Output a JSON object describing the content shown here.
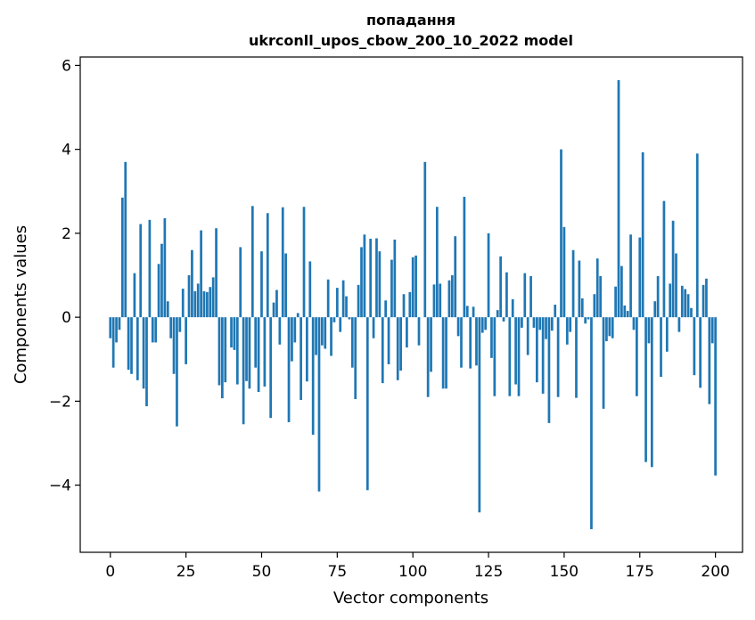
{
  "chart_data": {
    "type": "bar",
    "title": [
      "попадання",
      "ukrconll_upos_cbow_200_10_2022 model"
    ],
    "xlabel": "Vector components",
    "ylabel": "Components values",
    "xlim": [
      -9.95,
      208.95
    ],
    "ylim": [
      -5.6,
      6.2
    ],
    "xticks": [
      0,
      25,
      50,
      75,
      100,
      125,
      150,
      175,
      200
    ],
    "yticks": [
      -4,
      -2,
      0,
      2,
      4,
      6
    ],
    "grid": false,
    "legend": "none",
    "bar_color": "#1f77b4",
    "values": [
      -0.5,
      -1.2,
      -0.6,
      -0.3,
      2.85,
      3.7,
      -1.25,
      -1.35,
      1.05,
      -1.5,
      2.22,
      -1.7,
      -2.12,
      2.32,
      -0.6,
      -0.6,
      1.27,
      1.75,
      2.36,
      0.38,
      -0.5,
      -1.35,
      -2.6,
      -0.35,
      0.68,
      -1.12,
      1.0,
      1.6,
      0.62,
      0.8,
      2.07,
      0.62,
      0.6,
      0.72,
      0.95,
      2.12,
      -1.62,
      -1.93,
      -1.55,
      0.0,
      -0.72,
      -0.78,
      -1.6,
      1.67,
      -2.55,
      -1.52,
      -1.7,
      2.65,
      -1.2,
      -1.78,
      1.57,
      -1.65,
      2.48,
      -2.4,
      0.35,
      0.65,
      -0.65,
      2.62,
      1.52,
      -2.5,
      -1.05,
      -0.6,
      0.1,
      -1.97,
      2.63,
      -1.53,
      1.33,
      -2.8,
      -0.9,
      -4.15,
      -0.67,
      -0.75,
      0.9,
      -0.92,
      -0.12,
      0.7,
      -0.35,
      0.88,
      0.5,
      -0.05,
      -1.2,
      -1.95,
      0.77,
      1.67,
      1.97,
      -4.12,
      1.87,
      -0.5,
      1.88,
      1.57,
      -1.57,
      0.4,
      -1.12,
      1.37,
      1.85,
      -1.5,
      -1.27,
      0.55,
      -0.72,
      0.6,
      1.43,
      1.47,
      -0.67,
      0.0,
      3.7,
      -1.9,
      -1.3,
      0.78,
      2.63,
      0.8,
      -1.7,
      -1.7,
      0.88,
      1.0,
      1.93,
      -0.45,
      -1.2,
      2.87,
      0.27,
      -1.22,
      0.25,
      -1.15,
      -4.65,
      -0.37,
      -0.3,
      2.0,
      -0.97,
      -1.88,
      0.17,
      1.45,
      -0.1,
      1.07,
      -1.88,
      0.43,
      -1.6,
      -1.88,
      -0.25,
      1.05,
      -0.9,
      0.98,
      -0.25,
      -1.55,
      -0.3,
      -1.82,
      -0.52,
      -2.52,
      -0.32,
      0.3,
      -1.9,
      4.0,
      2.15,
      -0.65,
      -0.35,
      1.6,
      -1.92,
      1.35,
      0.45,
      -0.15,
      -0.05,
      -5.05,
      0.55,
      1.4,
      0.98,
      -2.18,
      -0.57,
      -0.45,
      -0.5,
      0.73,
      5.65,
      1.22,
      0.28,
      0.15,
      1.97,
      -0.3,
      -1.88,
      1.9,
      3.93,
      -3.45,
      -0.62,
      -3.57,
      0.38,
      0.98,
      -1.42,
      2.77,
      -0.82,
      0.8,
      2.3,
      1.52,
      -0.35,
      0.75,
      0.67,
      0.55,
      0.22,
      -1.38,
      3.9,
      -1.68,
      0.77,
      0.92,
      -2.07,
      -0.62,
      -3.77
    ]
  }
}
